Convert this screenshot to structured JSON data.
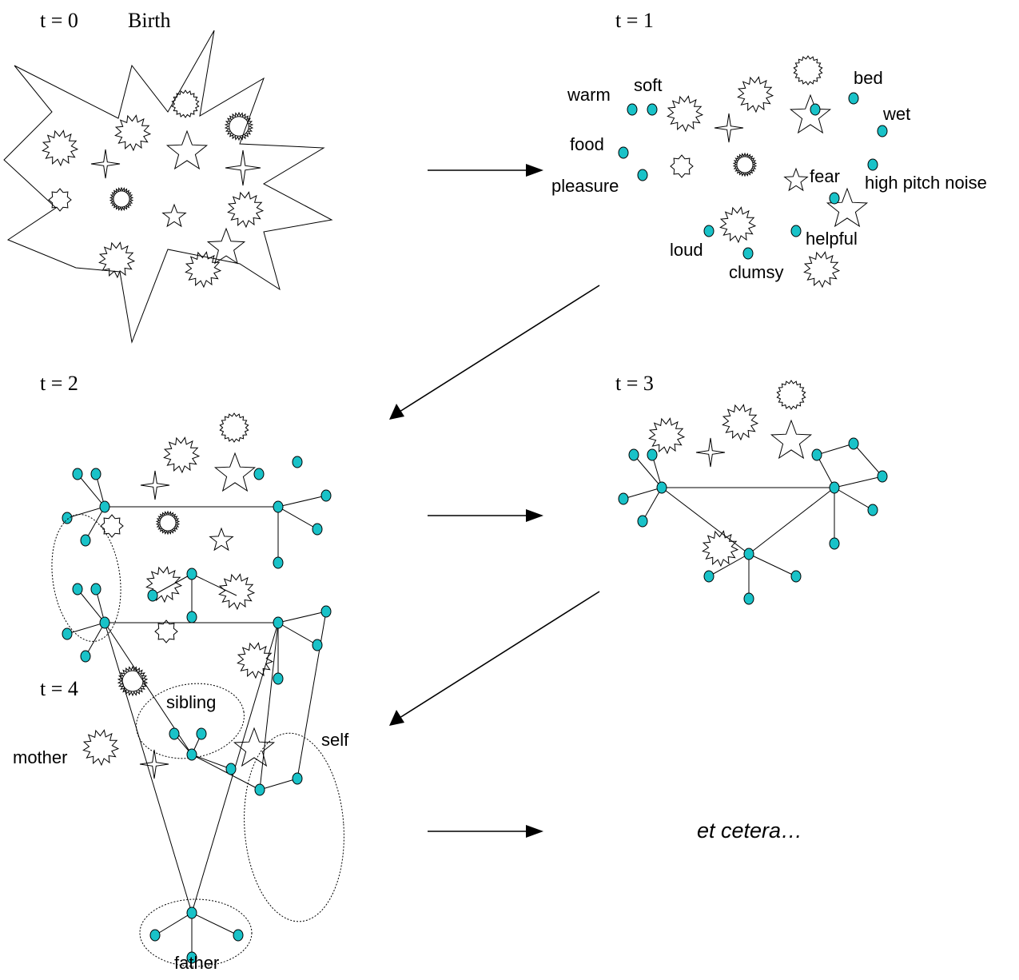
{
  "time_labels": {
    "t0": "t = 0",
    "t0_caption": "Birth",
    "t1": "t = 1",
    "t2": "t = 2",
    "t3": "t = 3",
    "t4": "t = 4"
  },
  "t1_concepts": {
    "warm": "warm",
    "soft": "soft",
    "food": "food",
    "pleasure": "pleasure",
    "bed": "bed",
    "wet": "wet",
    "fear": "fear",
    "high_pitch_noise": "high pitch noise",
    "loud": "loud",
    "helpful": "helpful",
    "clumsy": "clumsy"
  },
  "t4_clusters": {
    "sibling": "sibling",
    "mother": "mother",
    "self": "self",
    "father": "father"
  },
  "ending": "et cetera…",
  "colors": {
    "node_fill": "#19c2c8",
    "stroke": "#000000",
    "background": "#ffffff"
  },
  "icons": [
    "seven-point-burst-icon",
    "star-icon",
    "four-point-star-icon",
    "serrated-ring-icon",
    "small-burst-icon",
    "arrow-icon"
  ]
}
